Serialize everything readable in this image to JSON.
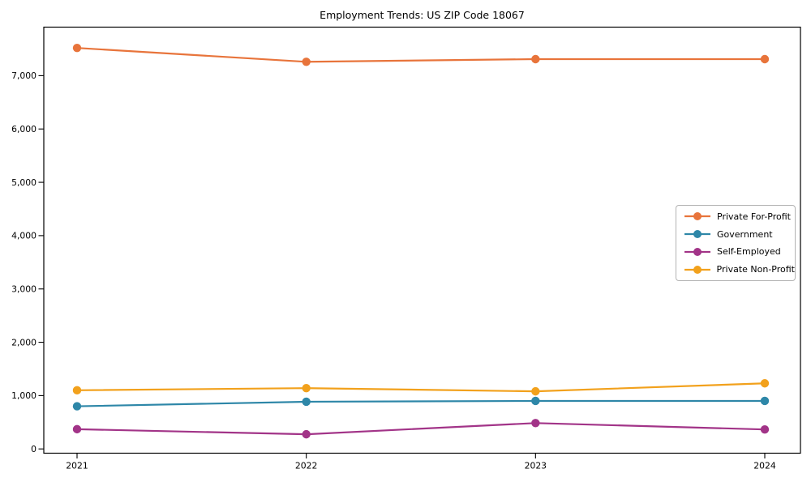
{
  "chart_data": {
    "type": "line",
    "title": "Employment Trends: US ZIP Code 18067",
    "x": [
      "2021",
      "2022",
      "2023",
      "2024"
    ],
    "series": [
      {
        "name": "Private For-Profit",
        "color": "#E8743B",
        "values": [
          7520,
          7260,
          7310,
          7310
        ]
      },
      {
        "name": "Government",
        "color": "#2E87A8",
        "values": [
          800,
          885,
          900,
          900
        ]
      },
      {
        "name": "Self-Employed",
        "color": "#A23488",
        "values": [
          370,
          275,
          485,
          365
        ]
      },
      {
        "name": "Private Non-Profit",
        "color": "#F2A11C",
        "values": [
          1100,
          1140,
          1080,
          1230
        ]
      }
    ],
    "xlabel": "",
    "ylabel": "",
    "ylim": [
      -80,
      7910
    ],
    "yticks": [
      0,
      1000,
      2000,
      3000,
      4000,
      5000,
      6000,
      7000
    ],
    "grid": false,
    "marker": "circle",
    "legend_position": "center-right"
  }
}
